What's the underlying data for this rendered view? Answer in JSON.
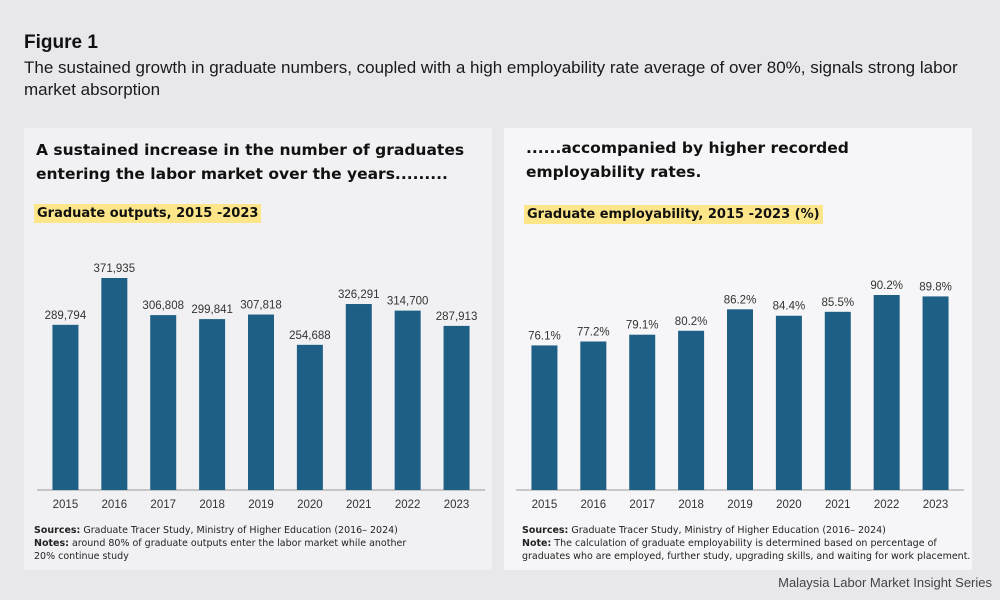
{
  "figure": {
    "title": "Figure 1",
    "subtitle": "The sustained growth in graduate numbers, coupled with a high employability rate average of over 80%, signals strong labor market absorption"
  },
  "left_panel": {
    "heading": "A sustained increase in the number of graduates entering the labor market over the years.........",
    "chart_label": "Graduate outputs, 2015 -2023",
    "sources_label": "Sources:",
    "sources_text": " Graduate Tracer Study, Ministry of Higher Education (2016– 2024)",
    "notes_label": "Notes:",
    "notes_text": " around 80% of graduate outputs enter the labor market while another 20% continue study"
  },
  "right_panel": {
    "heading": "......accompanied by higher recorded employability rates.",
    "chart_label": "Graduate employability, 2015 -2023 (%)",
    "sources_label": "Sources:",
    "sources_text": " Graduate Tracer Study, Ministry of Higher Education (2016– 2024)",
    "notes_label": "Note:",
    "notes_text": " The calculation of graduate employability is determined based on percentage of graduates who are employed, further study, upgrading skills, and waiting for work placement."
  },
  "footer": "Malaysia Labor Market Insight Series",
  "colors": {
    "bar": "#1e5f86",
    "highlight": "#fde68a"
  },
  "chart_data": [
    {
      "type": "bar",
      "title": "Graduate outputs, 2015 -2023",
      "categories": [
        "2015",
        "2016",
        "2017",
        "2018",
        "2019",
        "2020",
        "2021",
        "2022",
        "2023"
      ],
      "values": [
        289794,
        371935,
        306808,
        299841,
        307818,
        254688,
        326291,
        314700,
        287913
      ],
      "data_labels": [
        "289,794",
        "371,935",
        "306,808",
        "299,841",
        "307,818",
        "254,688",
        "326,291",
        "314,700",
        "287,913"
      ],
      "ylim": [
        0,
        371935
      ],
      "grid": false
    },
    {
      "type": "bar",
      "title": "Graduate employability, 2015 -2023 (%)",
      "categories": [
        "2015",
        "2016",
        "2017",
        "2018",
        "2019",
        "2020",
        "2021",
        "2022",
        "2023"
      ],
      "values": [
        76.1,
        77.2,
        79.1,
        80.2,
        86.2,
        84.4,
        85.5,
        90.2,
        89.8
      ],
      "data_labels": [
        "76.1%",
        "77.2%",
        "79.1%",
        "80.2%",
        "86.2%",
        "84.4%",
        "85.5%",
        "90.2%",
        "89.8%"
      ],
      "ylim": [
        60,
        90.2
      ],
      "grid": false
    }
  ]
}
